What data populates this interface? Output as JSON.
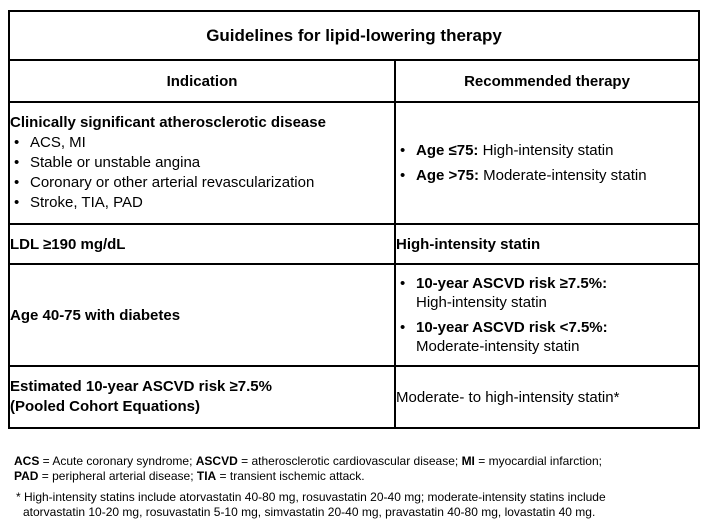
{
  "table": {
    "title": "Guidelines for lipid-lowering therapy",
    "headers": {
      "indication": "Indication",
      "therapy": "Recommended therapy"
    },
    "rows": [
      {
        "indication_title": "Clinically significant atherosclerotic disease",
        "indication_items": [
          "ACS, MI",
          "Stable or unstable angina",
          "Coronary or other arterial revascularization",
          "Stroke, TIA, PAD"
        ],
        "therapy_items": [
          {
            "label": "Age ≤75:",
            "text": " High-intensity statin"
          },
          {
            "label": "Age >75:",
            "text": " Moderate-intensity statin"
          }
        ]
      },
      {
        "indication_title": "LDL ≥190 mg/dL",
        "therapy_text": "High-intensity statin"
      },
      {
        "indication_title": "Age 40-75 with diabetes",
        "therapy_items": [
          {
            "label": "10-year ASCVD risk ≥7.5%:",
            "text": "High-intensity statin"
          },
          {
            "label": "10-year ASCVD risk <7.5%:",
            "text": "Moderate-intensity statin"
          }
        ]
      },
      {
        "indication_line1": "Estimated 10-year ASCVD risk ≥7.5%",
        "indication_line2": "(Pooled Cohort Equations)",
        "therapy_text": "Moderate- to high-intensity statin*"
      }
    ]
  },
  "footnotes": {
    "abbrev": [
      {
        "term": "ACS",
        "def": " = Acute coronary syndrome; "
      },
      {
        "term": "ASCVD",
        "def": " = atherosclerotic cardiovascular disease; "
      },
      {
        "term": "MI",
        "def": " = myocardial infarction;"
      },
      {
        "term": "PAD",
        "def": " = peripheral arterial disease; "
      },
      {
        "term": "TIA",
        "def": " = transient ischemic attack."
      }
    ],
    "statin_note_line1": "* High-intensity statins include atorvastatin 40-80 mg, rosuvastatin 20-40 mg; moderate-intensity statins include",
    "statin_note_line2": "atorvastatin 10-20 mg, rosuvastatin 5-10 mg, simvastatin 20-40 mg, pravastatin 40-80 mg, lovastatin 40 mg."
  }
}
